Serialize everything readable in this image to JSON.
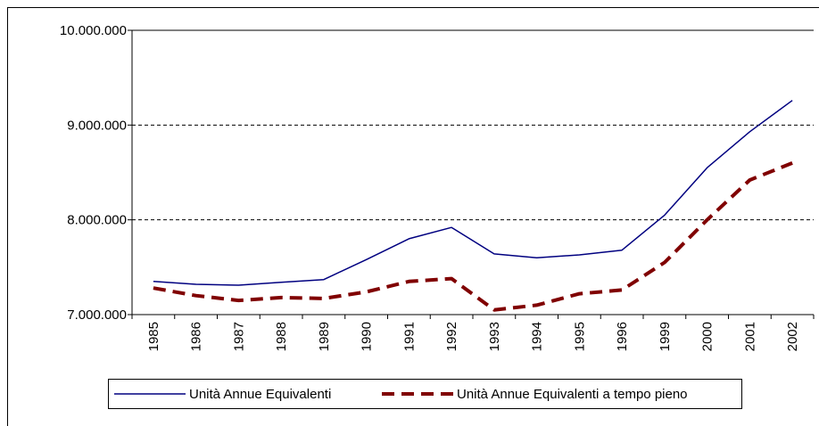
{
  "chart_data": {
    "type": "line",
    "categories": [
      "1985",
      "1986",
      "1987",
      "1988",
      "1989",
      "1990",
      "1991",
      "1992",
      "1993",
      "1994",
      "1995",
      "1996",
      "1999",
      "2000",
      "2001",
      "2002"
    ],
    "series": [
      {
        "name": "Unità Annue Equivalenti",
        "color": "#000080",
        "values": [
          7350000,
          7320000,
          7310000,
          7340000,
          7370000,
          7580000,
          7800000,
          7920000,
          7640000,
          7600000,
          7630000,
          7680000,
          8050000,
          8550000,
          8930000,
          9260000
        ]
      },
      {
        "name": "Unità Annue Equivalenti a tempo pieno",
        "color": "#800000",
        "values": [
          7280000,
          7200000,
          7150000,
          7180000,
          7170000,
          7240000,
          7350000,
          7380000,
          7050000,
          7100000,
          7220000,
          7260000,
          7550000,
          8000000,
          8420000,
          8600000
        ]
      }
    ],
    "ylim": [
      7000000,
      10000000
    ],
    "yticks": [
      {
        "value": 7000000,
        "label": "7.000.000"
      },
      {
        "value": 8000000,
        "label": "8.000.000"
      },
      {
        "value": 9000000,
        "label": "9.000.000"
      },
      {
        "value": 10000000,
        "label": "10.000.000"
      }
    ],
    "grid": true
  }
}
